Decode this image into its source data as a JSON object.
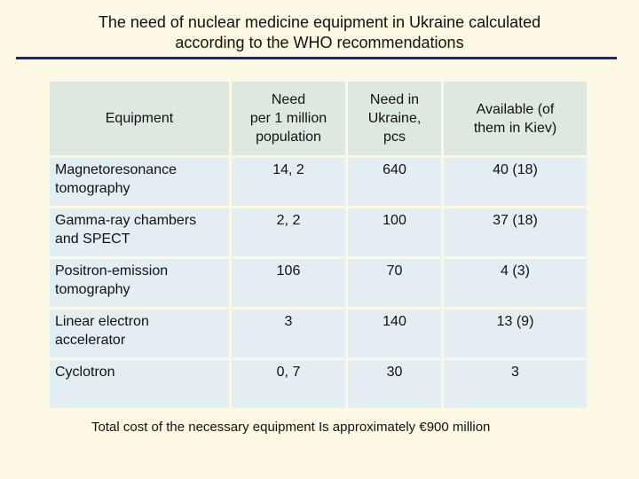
{
  "slide": {
    "title_line1": "The need of nuclear medicine equipment in Ukraine calculated",
    "title_line2": "according to the WHO recommendations",
    "footer": "Total cost of the necessary equipment Is approximately  €900 million"
  },
  "table": {
    "headers": [
      [
        "Equipment"
      ],
      [
        "Need",
        "per 1 million",
        "population"
      ],
      [
        "Need in",
        "Ukraine,",
        "pcs"
      ],
      [
        "Available (of",
        "them in Kiev)"
      ]
    ],
    "rows": [
      {
        "name": [
          "Magnetoresonance",
          "tomography"
        ],
        "per_million": "14, 2",
        "ukraine": "640",
        "available": "40 (18)"
      },
      {
        "name": [
          "Gamma-ray chambers",
          "and SPECT"
        ],
        "per_million": "2, 2",
        "ukraine": "100",
        "available": "37 (18)"
      },
      {
        "name": [
          "Positron-emission",
          "tomography"
        ],
        "per_million": "106",
        "ukraine": "70",
        "available": "4 (3)"
      },
      {
        "name": [
          "Linear electron",
          "accelerator"
        ],
        "per_million": "3",
        "ukraine": "140",
        "available": "13 (9)"
      },
      {
        "name": [
          "Cyclotron"
        ],
        "per_million": "0, 7",
        "ukraine": "30",
        "available": "3"
      }
    ]
  }
}
